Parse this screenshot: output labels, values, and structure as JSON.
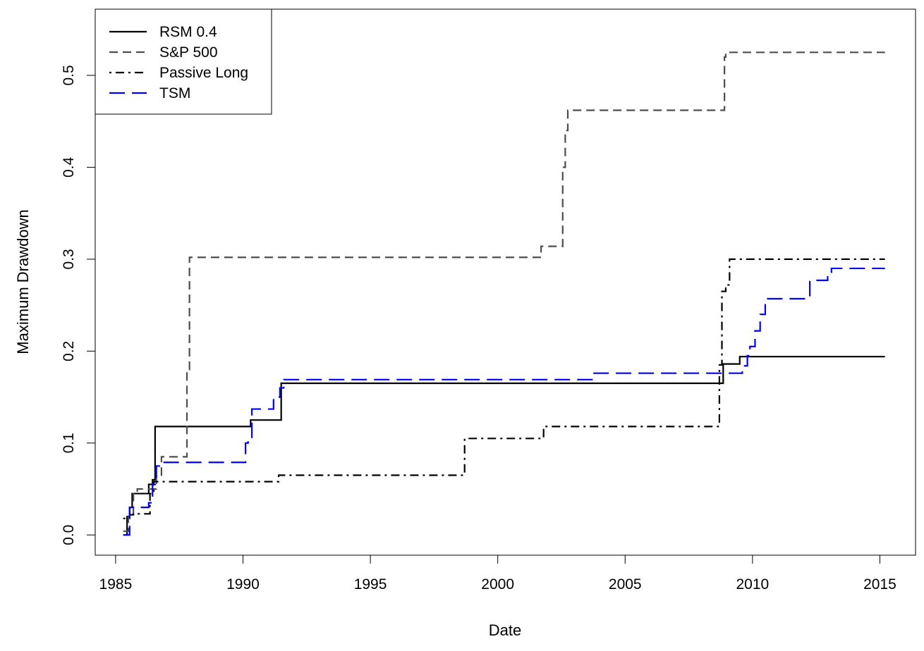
{
  "chart_data": {
    "type": "line",
    "title": "",
    "xlabel": "Date",
    "ylabel": "Maximum Drawdown",
    "xlim": [
      1984.2,
      2016.4
    ],
    "ylim": [
      -0.022,
      0.572
    ],
    "xticks": [
      1985,
      1990,
      1995,
      2000,
      2005,
      2010,
      2015
    ],
    "xtick_labels": [
      "1985",
      "1990",
      "1995",
      "2000",
      "2005",
      "2010",
      "2015"
    ],
    "yticks": [
      0,
      0.1,
      0.2,
      0.3,
      0.4,
      0.5
    ],
    "ytick_labels": [
      "0.0",
      "0.1",
      "0.2",
      "0.3",
      "0.4",
      "0.5"
    ],
    "grid": false,
    "legend_position": "top-left",
    "series": [
      {
        "name": "RSM 0.4",
        "color": "#000000",
        "dash": "solid",
        "step": true,
        "points": [
          [
            1985.3,
            0.0
          ],
          [
            1985.45,
            0.02
          ],
          [
            1985.55,
            0.03
          ],
          [
            1985.65,
            0.045
          ],
          [
            1986.2,
            0.045
          ],
          [
            1986.3,
            0.055
          ],
          [
            1986.45,
            0.06
          ],
          [
            1986.55,
            0.118
          ],
          [
            1990.2,
            0.118
          ],
          [
            1990.3,
            0.125
          ],
          [
            1991.45,
            0.125
          ],
          [
            1991.5,
            0.165
          ],
          [
            2008.8,
            0.165
          ],
          [
            2008.85,
            0.186
          ],
          [
            2009.4,
            0.186
          ],
          [
            2009.5,
            0.194
          ],
          [
            2015.2,
            0.194
          ]
        ]
      },
      {
        "name": "S&P 500",
        "color": "#4d4d4d",
        "dash": "dashed",
        "step": true,
        "points": [
          [
            1985.3,
            0.004
          ],
          [
            1985.5,
            0.02
          ],
          [
            1985.7,
            0.045
          ],
          [
            1985.85,
            0.05
          ],
          [
            1986.3,
            0.05
          ],
          [
            1986.6,
            0.065
          ],
          [
            1986.8,
            0.085
          ],
          [
            1987.6,
            0.085
          ],
          [
            1987.8,
            0.18
          ],
          [
            1987.9,
            0.302
          ],
          [
            2001.6,
            0.302
          ],
          [
            2001.7,
            0.314
          ],
          [
            2002.4,
            0.314
          ],
          [
            2002.55,
            0.4
          ],
          [
            2002.65,
            0.44
          ],
          [
            2002.75,
            0.462
          ],
          [
            2008.8,
            0.462
          ],
          [
            2008.9,
            0.52
          ],
          [
            2008.95,
            0.525
          ],
          [
            2015.2,
            0.525
          ]
        ]
      },
      {
        "name": "Passive Long",
        "color": "#000000",
        "dash": "dotdash",
        "step": true,
        "points": [
          [
            1985.3,
            0.018
          ],
          [
            1985.55,
            0.022
          ],
          [
            1985.7,
            0.023
          ],
          [
            1986.2,
            0.023
          ],
          [
            1986.35,
            0.045
          ],
          [
            1986.5,
            0.058
          ],
          [
            1991.3,
            0.058
          ],
          [
            1991.4,
            0.065
          ],
          [
            1998.6,
            0.065
          ],
          [
            1998.7,
            0.105
          ],
          [
            2001.6,
            0.105
          ],
          [
            2001.8,
            0.118
          ],
          [
            2008.6,
            0.118
          ],
          [
            2008.7,
            0.185
          ],
          [
            2008.8,
            0.265
          ],
          [
            2008.95,
            0.272
          ],
          [
            2009.1,
            0.3
          ],
          [
            2015.2,
            0.3
          ]
        ]
      },
      {
        "name": "TSM",
        "color": "#0000ff",
        "dash": "longdash",
        "step": true,
        "points": [
          [
            1985.3,
            0.0
          ],
          [
            1985.5,
            0.0
          ],
          [
            1985.55,
            0.03
          ],
          [
            1986.2,
            0.03
          ],
          [
            1986.3,
            0.035
          ],
          [
            1986.45,
            0.055
          ],
          [
            1986.6,
            0.075
          ],
          [
            1986.8,
            0.079
          ],
          [
            1990.0,
            0.079
          ],
          [
            1990.1,
            0.1
          ],
          [
            1990.2,
            0.105
          ],
          [
            1990.35,
            0.137
          ],
          [
            1991.1,
            0.137
          ],
          [
            1991.2,
            0.15
          ],
          [
            1991.45,
            0.16
          ],
          [
            1991.6,
            0.169
          ],
          [
            2003.6,
            0.169
          ],
          [
            2003.7,
            0.176
          ],
          [
            2009.5,
            0.176
          ],
          [
            2009.6,
            0.184
          ],
          [
            2009.8,
            0.195
          ],
          [
            2009.9,
            0.205
          ],
          [
            2010.1,
            0.222
          ],
          [
            2010.3,
            0.24
          ],
          [
            2010.5,
            0.257
          ],
          [
            2012.1,
            0.257
          ],
          [
            2012.25,
            0.277
          ],
          [
            2012.8,
            0.277
          ],
          [
            2012.95,
            0.284
          ],
          [
            2013.1,
            0.29
          ],
          [
            2015.2,
            0.29
          ]
        ]
      }
    ]
  }
}
